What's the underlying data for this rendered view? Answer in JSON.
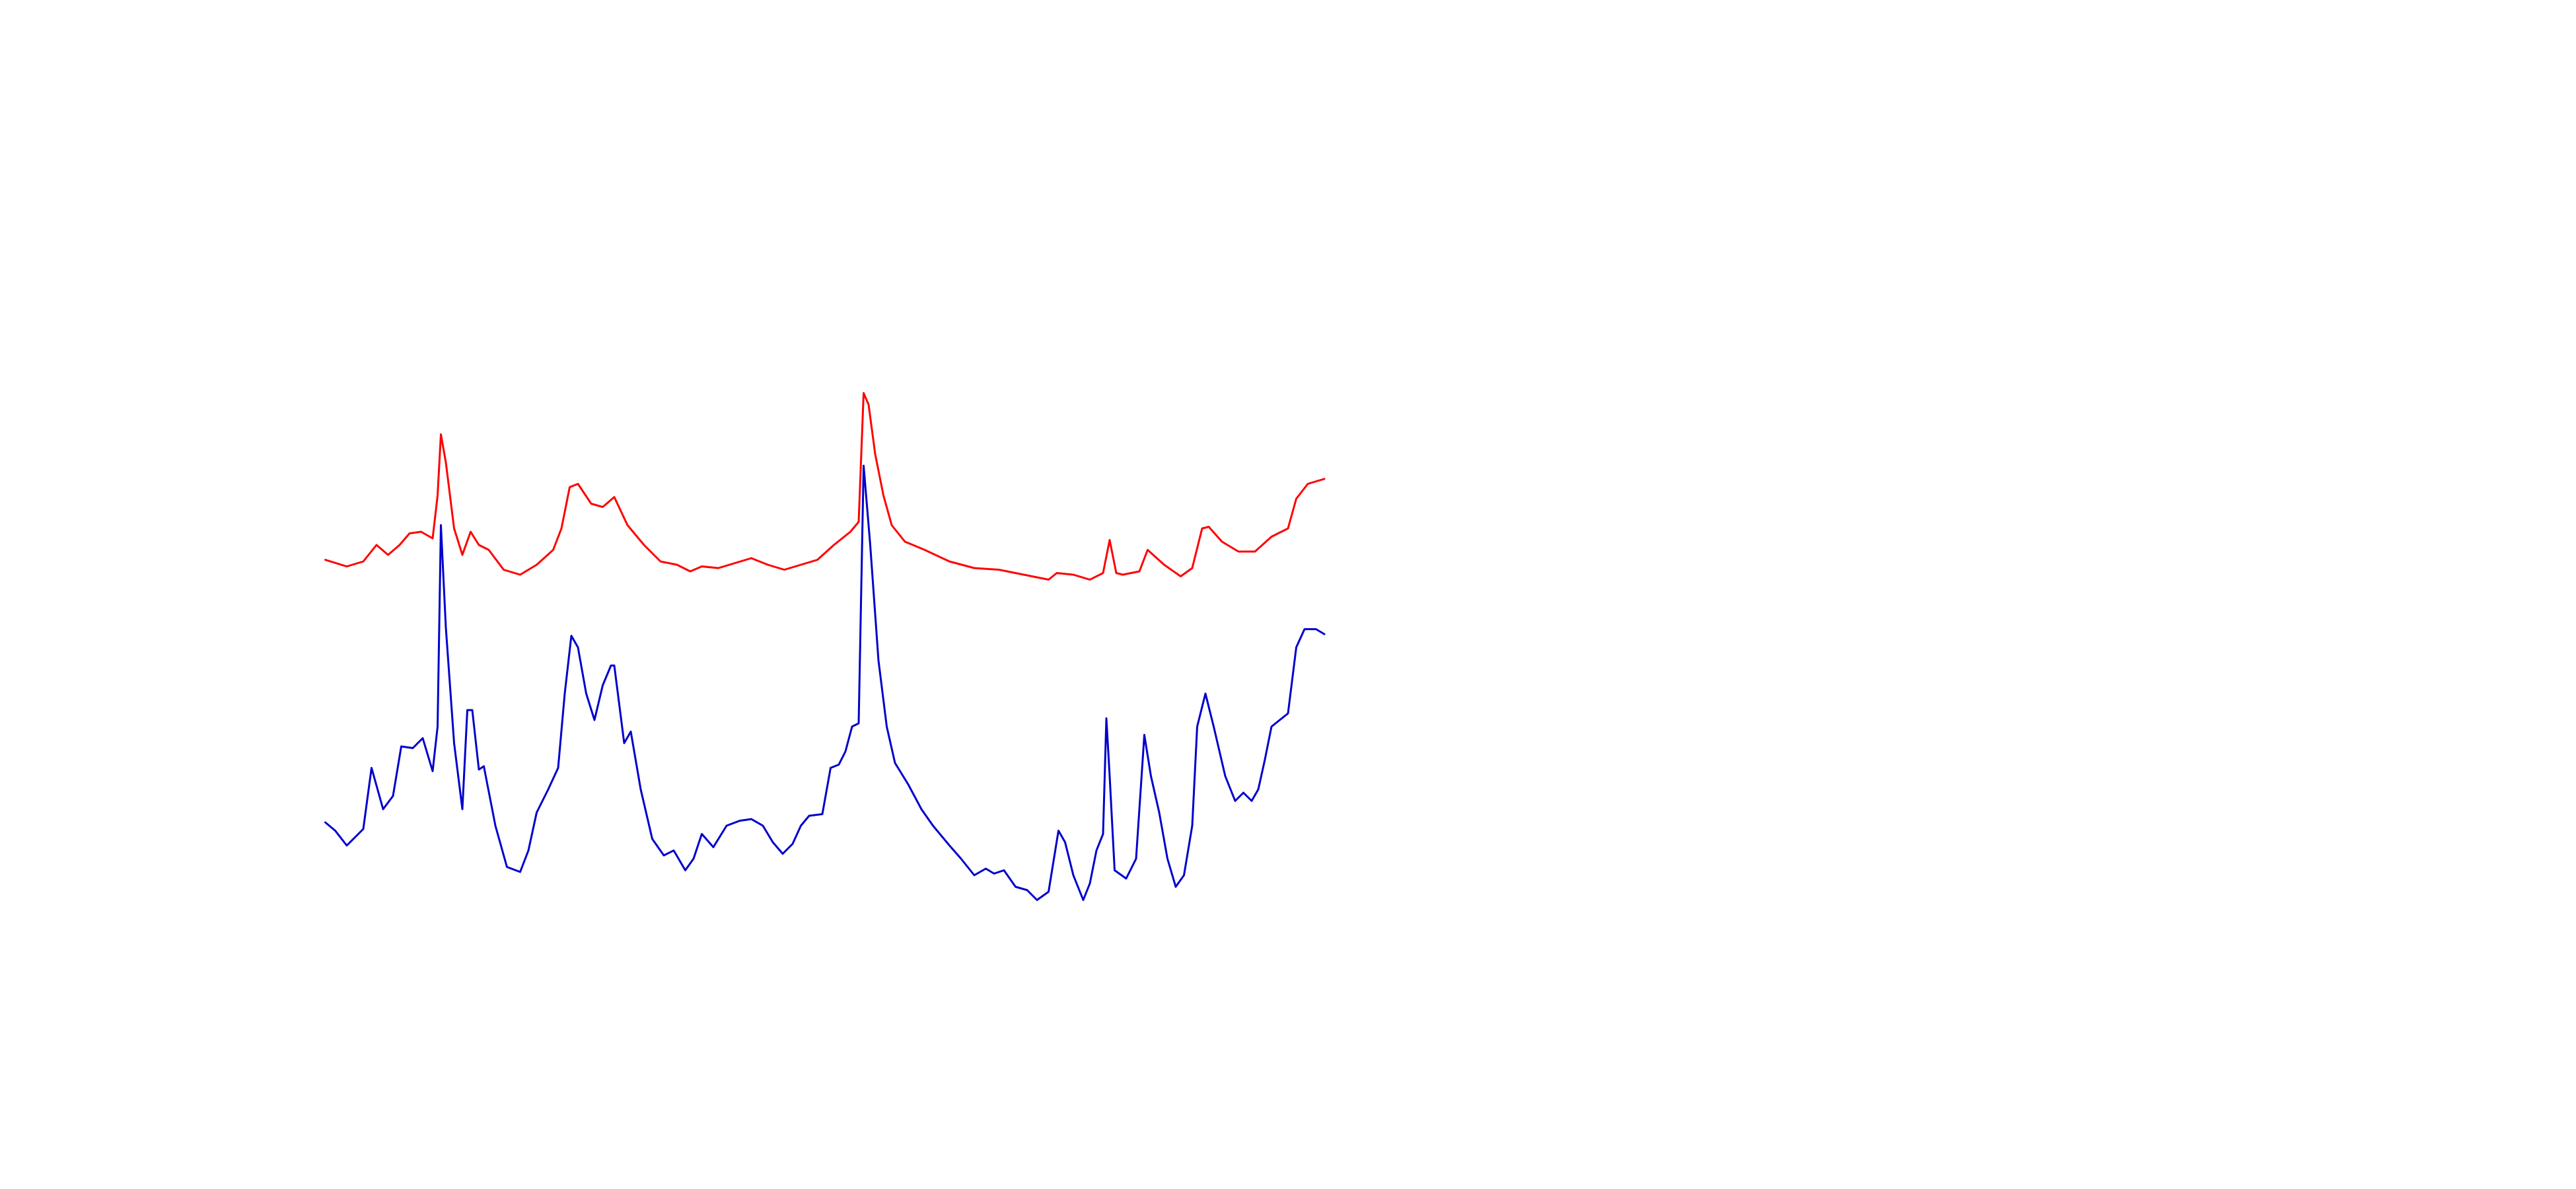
{
  "chart_data": {
    "type": "line",
    "xlim": [
      0,
      1560
    ],
    "ylim": [
      0,
      720
    ],
    "series": [
      {
        "name": "red",
        "color": "#ff0000",
        "x": [
          197,
          210,
          220,
          228,
          235,
          242,
          248,
          255,
          262,
          265,
          267,
          270,
          275,
          280,
          285,
          290,
          296,
          305,
          315,
          325,
          335,
          340,
          345,
          350,
          358,
          365,
          372,
          380,
          390,
          400,
          410,
          418,
          425,
          435,
          445,
          455,
          465,
          475,
          485,
          495,
          505,
          515,
          520,
          523,
          526,
          530,
          535,
          540,
          548,
          560,
          575,
          590,
          605,
          620,
          635,
          640,
          650,
          660,
          668,
          672,
          676,
          680,
          690,
          695,
          705,
          715,
          722,
          728,
          732,
          740,
          750,
          760,
          770,
          780,
          785,
          792,
          802
        ],
        "values": [
          381,
          377,
          380,
          390,
          384,
          390,
          397,
          398,
          394,
          420,
          457,
          440,
          400,
          384,
          398,
          390,
          387,
          375,
          372,
          378,
          387,
          400,
          425,
          427,
          415,
          413,
          419,
          402,
          390,
          380,
          378,
          374,
          377,
          376,
          379,
          382,
          378,
          375,
          378,
          381,
          390,
          398,
          404,
          482,
          475,
          445,
          420,
          402,
          392,
          387,
          380,
          376,
          375,
          372,
          369,
          373,
          372,
          369,
          373,
          393,
          373,
          372,
          374,
          387,
          378,
          371,
          376,
          400,
          401,
          392,
          386,
          386,
          395,
          400,
          418,
          427,
          430
        ]
      },
      {
        "name": "blue",
        "color": "#0000cc",
        "x": [
          197,
          203,
          210,
          215,
          220,
          225,
          232,
          238,
          243,
          250,
          256,
          262,
          265,
          267,
          270,
          275,
          280,
          283,
          286,
          290,
          293,
          300,
          307,
          315,
          320,
          325,
          332,
          338,
          342,
          346,
          350,
          355,
          360,
          365,
          370,
          372,
          378,
          382,
          388,
          395,
          402,
          408,
          415,
          420,
          425,
          432,
          440,
          448,
          455,
          462,
          468,
          474,
          480,
          485,
          490,
          498,
          503,
          508,
          512,
          516,
          520,
          523,
          527,
          532,
          537,
          542,
          550,
          558,
          565,
          575,
          582,
          590,
          597,
          602,
          608,
          615,
          622,
          628,
          635,
          641,
          645,
          650,
          656,
          660,
          664,
          668,
          670,
          672,
          675,
          682,
          688,
          693,
          697,
          702,
          707,
          712,
          717,
          722,
          725,
          730,
          735,
          742,
          748,
          753,
          758,
          762,
          766,
          770,
          775,
          780,
          785,
          790,
          797,
          802
        ],
        "values": [
          222,
          217,
          208,
          213,
          218,
          255,
          230,
          238,
          268,
          267,
          273,
          253,
          280,
          402,
          340,
          270,
          230,
          290,
          290,
          254,
          256,
          220,
          195,
          192,
          205,
          228,
          242,
          255,
          300,
          335,
          328,
          300,
          284,
          305,
          317,
          317,
          270,
          277,
          242,
          212,
          202,
          205,
          193,
          200,
          215,
          207,
          220,
          223,
          224,
          220,
          210,
          203,
          209,
          220,
          226,
          227,
          255,
          257,
          265,
          280,
          282,
          438,
          390,
          320,
          280,
          258,
          245,
          230,
          220,
          208,
          200,
          190,
          194,
          191,
          193,
          183,
          181,
          175,
          180,
          217,
          210,
          190,
          175,
          185,
          205,
          215,
          285,
          250,
          193,
          188,
          200,
          275,
          250,
          228,
          200,
          183,
          190,
          220,
          280,
          300,
          280,
          250,
          235,
          240,
          235,
          242,
          260,
          280,
          284,
          288,
          328,
          339,
          339,
          336
        ]
      }
    ]
  }
}
